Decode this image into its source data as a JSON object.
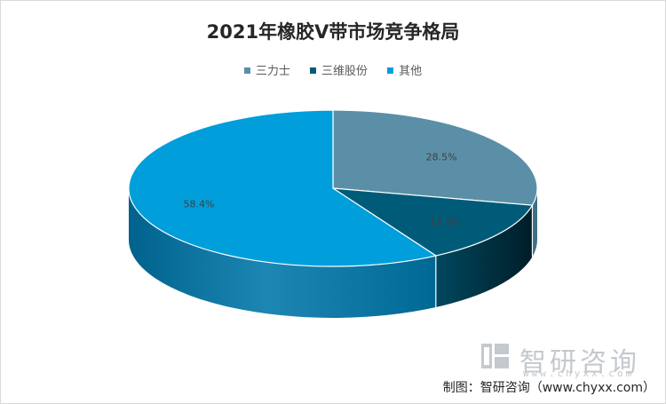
{
  "chart_data": {
    "type": "pie",
    "title": "2021年橡胶V带市场竞争格局",
    "categories": [
      "三力士",
      "三维股份",
      "其他"
    ],
    "values": [
      28.5,
      13.1,
      58.4
    ],
    "labels": [
      "28.5%",
      "13.1%",
      "58.4%"
    ],
    "colors": [
      "#5b8fa8",
      "#005b78",
      "#009edb"
    ],
    "legend_position": "top",
    "style": "3d"
  },
  "watermark": {
    "brand": "智研咨询",
    "url": "www.chyxx.com"
  },
  "source": "制图：智研咨询（www.chyxx.com）"
}
